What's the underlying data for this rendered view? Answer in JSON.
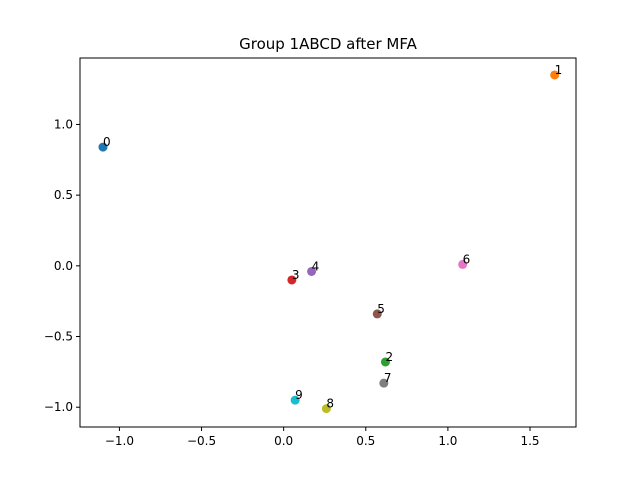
{
  "chart_data": {
    "type": "scatter",
    "title": "Group 1ABCD after MFA",
    "xlabel": "",
    "ylabel": "",
    "xlim": [
      -1.24,
      1.78
    ],
    "ylim": [
      -1.14,
      1.47
    ],
    "grid": false,
    "x_ticks": [
      -1.0,
      -0.5,
      0.0,
      0.5,
      1.0,
      1.5
    ],
    "x_tick_labels": [
      "−1.0",
      "−0.5",
      "0.0",
      "0.5",
      "1.0",
      "1.5"
    ],
    "y_ticks": [
      1.0,
      0.5,
      0.0,
      -0.5,
      -1.0
    ],
    "y_tick_labels": [
      "1.0",
      "0.5",
      "0.0",
      "−0.5",
      "−1.0"
    ],
    "points": [
      {
        "label": "0",
        "x": -1.1,
        "y": 0.84,
        "color": "#1f77b4"
      },
      {
        "label": "1",
        "x": 1.65,
        "y": 1.35,
        "color": "#ff7f0e"
      },
      {
        "label": "2",
        "x": 0.62,
        "y": -0.68,
        "color": "#2ca02c"
      },
      {
        "label": "3",
        "x": 0.05,
        "y": -0.1,
        "color": "#d62728"
      },
      {
        "label": "4",
        "x": 0.17,
        "y": -0.04,
        "color": "#9467bd"
      },
      {
        "label": "5",
        "x": 0.57,
        "y": -0.34,
        "color": "#8c564b"
      },
      {
        "label": "6",
        "x": 1.09,
        "y": 0.01,
        "color": "#e377c2"
      },
      {
        "label": "7",
        "x": 0.61,
        "y": -0.83,
        "color": "#7f7f7f"
      },
      {
        "label": "8",
        "x": 0.26,
        "y": -1.01,
        "color": "#bcbd22"
      },
      {
        "label": "9",
        "x": 0.07,
        "y": -0.95,
        "color": "#17becf"
      }
    ]
  }
}
